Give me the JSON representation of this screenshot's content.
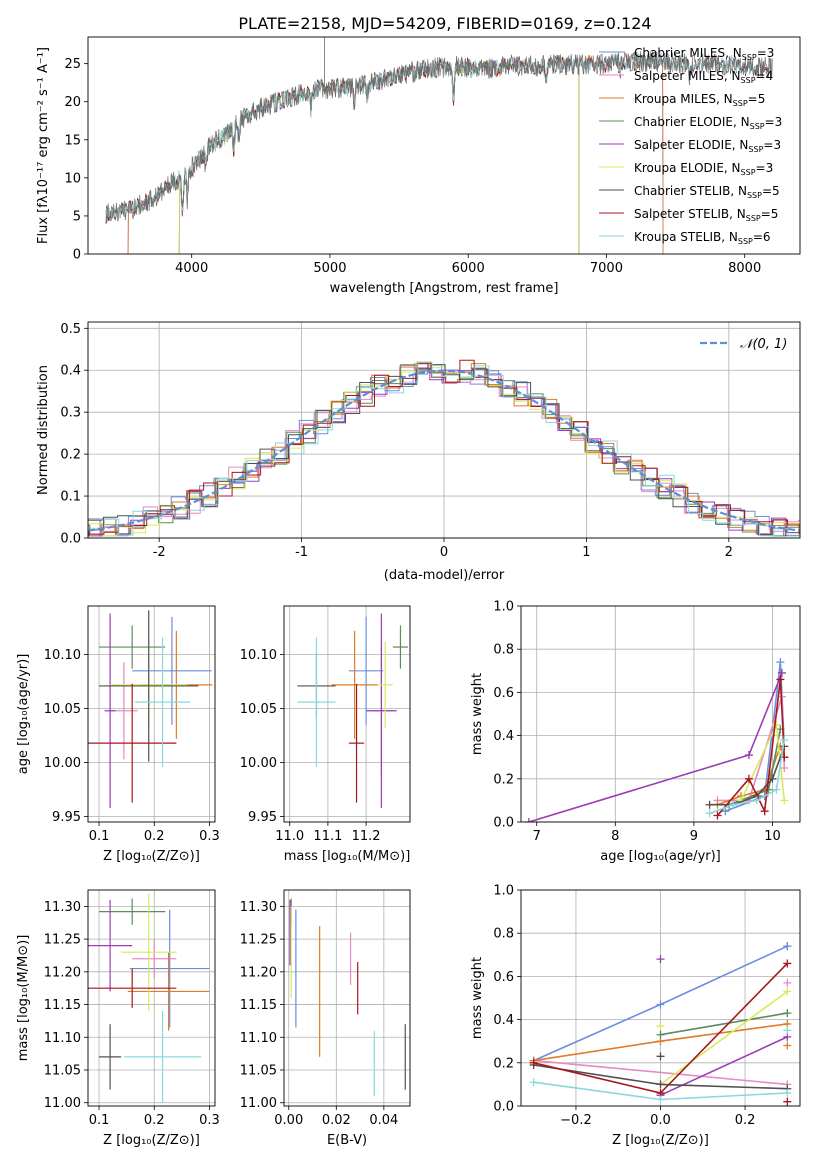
{
  "figure": {
    "title": "PLATE=2158, MJD=54209, FIBERID=0169, z=0.124"
  },
  "colors": {
    "Chabrier MILES": "#6a8fdc",
    "Salpeter MILES": "#e58ac4",
    "Kroupa MILES": "#e07b26",
    "Chabrier ELODIE": "#5c8b5c",
    "Salpeter ELODIE": "#9b3cb5",
    "Kroupa ELODIE": "#d4ec5a",
    "Chabrier STELIB": "#505050",
    "Salpeter STELIB": "#a8161c",
    "Kroupa STELIB": "#8ad8dc"
  },
  "chart_data": [
    {
      "id": "spectrum",
      "type": "line",
      "xlabel": "wavelength [Angstrom, rest frame]",
      "ylabel": "Flux [fλ10⁻¹⁷ erg cm⁻² s⁻¹ A⁻¹]",
      "xlim": [
        3250,
        8400
      ],
      "ylim": [
        0,
        28.5
      ],
      "xticks": [
        4000,
        5000,
        6000,
        7000,
        8000
      ],
      "yticks": [
        0,
        5,
        10,
        15,
        20,
        25
      ],
      "grid": false,
      "legend": "top-right",
      "legend_entries": [
        {
          "model": "Chabrier MILES",
          "text": "Chabrier MILES, N",
          "sub": "SSP",
          "val": "=3"
        },
        {
          "model": "Salpeter MILES",
          "text": "Salpeter MILES, N",
          "sub": "SSP",
          "val": "=4"
        },
        {
          "model": "Kroupa MILES",
          "text": "Kroupa MILES, N",
          "sub": "SSP",
          "val": "=5"
        },
        {
          "model": "Chabrier ELODIE",
          "text": "Chabrier ELODIE, N",
          "sub": "SSP",
          "val": "=3"
        },
        {
          "model": "Salpeter ELODIE",
          "text": "Salpeter ELODIE, N",
          "sub": "SSP",
          "val": "=3"
        },
        {
          "model": "Kroupa ELODIE",
          "text": "Kroupa ELODIE, N",
          "sub": "SSP",
          "val": "=3"
        },
        {
          "model": "Chabrier STELIB",
          "text": "Chabrier STELIB, N",
          "sub": "SSP",
          "val": "=5"
        },
        {
          "model": "Salpeter STELIB",
          "text": "Salpeter STELIB, N",
          "sub": "SSP",
          "val": "=5"
        },
        {
          "model": "Kroupa STELIB",
          "text": "Kroupa STELIB, N",
          "sub": "SSP",
          "val": "=6"
        }
      ],
      "continuum": [
        [
          3380,
          5.2
        ],
        [
          3450,
          5.5
        ],
        [
          3550,
          5.8
        ],
        [
          3650,
          6.6
        ],
        [
          3750,
          7.6
        ],
        [
          3850,
          9.2
        ],
        [
          3950,
          10.3
        ],
        [
          4050,
          12.4
        ],
        [
          4150,
          14.5
        ],
        [
          4250,
          15.6
        ],
        [
          4350,
          17.5
        ],
        [
          4500,
          19.2
        ],
        [
          4700,
          20.5
        ],
        [
          4900,
          21.7
        ],
        [
          5100,
          21.8
        ],
        [
          5300,
          22.6
        ],
        [
          5500,
          23.5
        ],
        [
          5700,
          24.3
        ],
        [
          5900,
          24.7
        ],
        [
          6100,
          24.2
        ],
        [
          6300,
          24.8
        ],
        [
          6500,
          24.7
        ],
        [
          6700,
          24.9
        ],
        [
          6900,
          24.8
        ],
        [
          7100,
          25.2
        ],
        [
          7300,
          25.3
        ],
        [
          7600,
          25.0
        ],
        [
          7900,
          24.8
        ],
        [
          8150,
          24.5
        ]
      ],
      "features": [
        [
          3934,
          -5
        ],
        [
          3969,
          -4
        ],
        [
          4102,
          -2.5
        ],
        [
          4304,
          -3
        ],
        [
          4341,
          -2
        ],
        [
          4861,
          -2.5
        ],
        [
          5175,
          -3
        ],
        [
          5270,
          -1.5
        ],
        [
          5894,
          -4
        ],
        [
          6563,
          -1.5
        ],
        [
          7100,
          -1
        ],
        [
          7600,
          -1.5
        ]
      ],
      "model_extents": {
        "Chabrier MILES": [
          3540,
          7410
        ],
        "Salpeter MILES": [
          3540,
          7410
        ],
        "Kroupa MILES": [
          3540,
          7410
        ],
        "Chabrier ELODIE": [
          3910,
          6800
        ],
        "Salpeter ELODIE": [
          3910,
          6800
        ],
        "Kroupa ELODIE": [
          3910,
          6800
        ],
        "Chabrier STELIB": [
          3380,
          8200
        ],
        "Salpeter STELIB": [
          3380,
          8200
        ],
        "Kroupa STELIB": [
          3380,
          8200
        ]
      }
    },
    {
      "id": "residuals",
      "type": "histogram",
      "xlabel": "(data-model)/error",
      "ylabel": "Normed distribution",
      "xlim": [
        -2.5,
        2.5
      ],
      "ylim": [
        0,
        0.515
      ],
      "xticks": [
        -2,
        -1,
        0,
        1,
        2
      ],
      "yticks": [
        0.0,
        0.1,
        0.2,
        0.3,
        0.4,
        0.5
      ],
      "ytick_labels": [
        "0.0",
        "0.1",
        "0.2",
        "0.3",
        "0.4",
        "0.5"
      ],
      "grid": true,
      "legend": "top-right",
      "legend_label": "𝒩(0, 1)",
      "normal_color": "#5b8fd6",
      "bin_width": 0.1
    },
    {
      "id": "age_vs_Z",
      "type": "errorbar",
      "xlabel": "Z [log₁₀(Z/Z⊙)]",
      "ylabel": "age  [log₁₀(age/yr)]",
      "xlim": [
        0.08,
        0.31
      ],
      "ylim": [
        9.945,
        10.145
      ],
      "xticks": [
        0.1,
        0.2,
        0.3
      ],
      "yticks": [
        9.95,
        10.0,
        10.05,
        10.1
      ],
      "ytick_labels": [
        "9.95",
        "10.00",
        "10.05",
        "10.10"
      ],
      "grid": true,
      "points": [
        {
          "model": "Chabrier MILES",
          "x": 0.232,
          "y": 10.085,
          "xerr": 0.072,
          "yerr": 0.05
        },
        {
          "model": "Salpeter MILES",
          "x": 0.145,
          "y": 10.048,
          "xerr": 0.025,
          "yerr": 0.045
        },
        {
          "model": "Kroupa MILES",
          "x": 0.24,
          "y": 10.072,
          "xerr": 0.065,
          "yerr": 0.05
        },
        {
          "model": "Chabrier ELODIE",
          "x": 0.16,
          "y": 10.107,
          "xerr": 0.06,
          "yerr": 0.02
        },
        {
          "model": "Salpeter ELODIE",
          "x": 0.12,
          "y": 10.048,
          "xerr": 0.01,
          "yerr": 0.09
        },
        {
          "model": "Kroupa ELODIE",
          "x": 0.19,
          "y": 10.072,
          "xerr": 0.07,
          "yerr": 0.04
        },
        {
          "model": "Chabrier STELIB",
          "x": 0.19,
          "y": 10.071,
          "xerr": 0.09,
          "yerr": 0.07
        },
        {
          "model": "Salpeter STELIB",
          "x": 0.16,
          "y": 10.018,
          "xerr": 0.08,
          "yerr": 0.055
        },
        {
          "model": "Kroupa STELIB",
          "x": 0.215,
          "y": 10.056,
          "xerr": 0.05,
          "yerr": 0.06
        }
      ]
    },
    {
      "id": "age_vs_mass",
      "type": "errorbar",
      "xlabel": "mass [log₁₀(M/M⊙)]",
      "ylabel": "",
      "xlim": [
        10.985,
        11.315
      ],
      "ylim": [
        9.945,
        10.145
      ],
      "xticks": [
        11.0,
        11.1,
        11.2
      ],
      "xtick_labels": [
        "11.0",
        "11.1",
        "11.2"
      ],
      "yticks": [
        9.95,
        10.0,
        10.05,
        10.1
      ],
      "ytick_labels": [
        "9.95",
        "10.00",
        "10.05",
        "10.10"
      ],
      "grid": true,
      "points": [
        {
          "model": "Chabrier MILES",
          "x": 11.2,
          "y": 10.085,
          "xerr": 0.045,
          "yerr": 0.05
        },
        {
          "model": "Salpeter MILES",
          "x": 11.24,
          "y": 10.048,
          "xerr": 0.03,
          "yerr": 0.06
        },
        {
          "model": "Kroupa MILES",
          "x": 11.17,
          "y": 10.072,
          "xerr": 0.06,
          "yerr": 0.05
        },
        {
          "model": "Chabrier ELODIE",
          "x": 11.29,
          "y": 10.107,
          "xerr": 0.02,
          "yerr": 0.02
        },
        {
          "model": "Salpeter ELODIE",
          "x": 11.24,
          "y": 10.048,
          "xerr": 0.04,
          "yerr": 0.09
        },
        {
          "model": "Kroupa ELODIE",
          "x": 11.25,
          "y": 10.072,
          "xerr": 0.02,
          "yerr": 0.04
        },
        {
          "model": "Chabrier STELIB",
          "x": 11.07,
          "y": 10.071,
          "xerr": 0.05,
          "yerr": 0.03
        },
        {
          "model": "Salpeter STELIB",
          "x": 11.175,
          "y": 10.018,
          "xerr": 0.02,
          "yerr": 0.055
        },
        {
          "model": "Kroupa STELIB",
          "x": 11.07,
          "y": 10.056,
          "xerr": 0.05,
          "yerr": 0.06
        }
      ]
    },
    {
      "id": "mass_weight_vs_age",
      "type": "line",
      "xlabel": "age  [log₁₀(age/yr)]",
      "ylabel": "mass weight",
      "xlim": [
        6.8,
        10.35
      ],
      "ylim": [
        0,
        1.0
      ],
      "xticks": [
        7,
        8,
        9,
        10
      ],
      "yticks": [
        0.0,
        0.2,
        0.4,
        0.6,
        0.8,
        1.0
      ],
      "ytick_labels": [
        "0.0",
        "0.2",
        "0.4",
        "0.6",
        "0.8",
        "1.0"
      ],
      "grid": true,
      "series": [
        {
          "model": "Chabrier MILES",
          "x": [
            9.4,
            9.9,
            10.1,
            10.15
          ],
          "y": [
            0.05,
            0.12,
            0.74,
            0.35
          ]
        },
        {
          "model": "Salpeter MILES",
          "x": [
            9.3,
            9.7,
            10.12,
            10.15
          ],
          "y": [
            0.1,
            0.1,
            0.58,
            0.25
          ]
        },
        {
          "model": "Kroupa MILES",
          "x": [
            9.3,
            9.6,
            9.9,
            10.1,
            10.15
          ],
          "y": [
            0.08,
            0.12,
            0.15,
            0.35,
            0.3
          ]
        },
        {
          "model": "Chabrier ELODIE",
          "x": [
            9.45,
            9.95,
            10.1
          ],
          "y": [
            0.08,
            0.15,
            0.43
          ]
        },
        {
          "model": "Salpeter ELODIE",
          "x": [
            6.9,
            9.7,
            10.12
          ],
          "y": [
            0.0,
            0.31,
            0.69
          ]
        },
        {
          "model": "Kroupa ELODIE",
          "x": [
            9.6,
            10.05,
            10.15
          ],
          "y": [
            0.1,
            0.45,
            0.1
          ]
        },
        {
          "model": "Chabrier STELIB",
          "x": [
            9.2,
            9.5,
            9.8,
            10.0,
            10.15
          ],
          "y": [
            0.08,
            0.08,
            0.12,
            0.2,
            0.35
          ]
        },
        {
          "model": "Salpeter STELIB",
          "x": [
            9.3,
            9.7,
            9.9,
            10.1,
            10.15
          ],
          "y": [
            0.03,
            0.2,
            0.05,
            0.66,
            0.3
          ]
        },
        {
          "model": "Kroupa STELIB",
          "x": [
            9.2,
            9.5,
            9.8,
            10.05,
            10.15
          ],
          "y": [
            0.04,
            0.08,
            0.1,
            0.15,
            0.38
          ]
        }
      ]
    },
    {
      "id": "mass_vs_Z",
      "type": "errorbar",
      "xlabel": "Z [log₁₀(Z/Z⊙)]",
      "ylabel": "mass [log₁₀(M/M⊙)]",
      "xlim": [
        0.08,
        0.31
      ],
      "ylim": [
        10.995,
        11.325
      ],
      "xticks": [
        0.1,
        0.2,
        0.3
      ],
      "yticks": [
        11.0,
        11.05,
        11.1,
        11.15,
        11.2,
        11.25,
        11.3
      ],
      "ytick_labels": [
        "11.00",
        "11.05",
        "11.10",
        "11.15",
        "11.20",
        "11.25",
        "11.30"
      ],
      "grid": true,
      "points": [
        {
          "model": "Chabrier MILES",
          "x": 0.228,
          "y": 11.205,
          "xerr": 0.072,
          "yerr": 0.09
        },
        {
          "model": "Salpeter MILES",
          "x": 0.2,
          "y": 11.22,
          "xerr": 0.04,
          "yerr": 0.03
        },
        {
          "model": "Kroupa MILES",
          "x": 0.226,
          "y": 11.17,
          "xerr": 0.074,
          "yerr": 0.06
        },
        {
          "model": "Chabrier ELODIE",
          "x": 0.16,
          "y": 11.292,
          "xerr": 0.06,
          "yerr": 0.02
        },
        {
          "model": "Salpeter ELODIE",
          "x": 0.12,
          "y": 11.24,
          "xerr": 0.04,
          "yerr": 0.07
        },
        {
          "model": "Kroupa ELODIE",
          "x": 0.19,
          "y": 11.23,
          "xerr": 0.05,
          "yerr": 0.09
        },
        {
          "model": "Chabrier STELIB",
          "x": 0.12,
          "y": 11.07,
          "xerr": 0.02,
          "yerr": 0.05
        },
        {
          "model": "Salpeter STELIB",
          "x": 0.16,
          "y": 11.175,
          "xerr": 0.08,
          "yerr": 0.03
        },
        {
          "model": "Kroupa STELIB",
          "x": 0.215,
          "y": 11.07,
          "xerr": 0.07,
          "yerr": 0.07
        }
      ]
    },
    {
      "id": "mass_vs_ebv",
      "type": "errorbar",
      "xlabel": "E(B-V)",
      "ylabel": "",
      "xlim": [
        -0.002,
        0.051
      ],
      "ylim": [
        10.995,
        11.325
      ],
      "xticks": [
        0.0,
        0.02,
        0.04
      ],
      "xtick_labels": [
        "0.00",
        "0.02",
        "0.04"
      ],
      "yticks": [
        11.0,
        11.05,
        11.1,
        11.15,
        11.2,
        11.25,
        11.3
      ],
      "ytick_labels": [
        "11.00",
        "11.05",
        "11.10",
        "11.15",
        "11.20",
        "11.25",
        "11.30"
      ],
      "grid": true,
      "points": [
        {
          "model": "Chabrier MILES",
          "x": 0.003,
          "y": 11.205,
          "xerr": 0.0,
          "yerr": 0.09
        },
        {
          "model": "Salpeter MILES",
          "x": 0.026,
          "y": 11.22,
          "xerr": 0.0,
          "yerr": 0.04
        },
        {
          "model": "Kroupa MILES",
          "x": 0.013,
          "y": 11.17,
          "xerr": 0.0,
          "yerr": 0.1
        },
        {
          "model": "Chabrier ELODIE",
          "x": 0.001,
          "y": 11.292,
          "xerr": 0.0,
          "yerr": 0.02
        },
        {
          "model": "Salpeter ELODIE",
          "x": 0.0005,
          "y": 11.26,
          "xerr": 0.0,
          "yerr": 0.05
        },
        {
          "model": "Kroupa ELODIE",
          "x": 0.001,
          "y": 11.23,
          "xerr": 0.0,
          "yerr": 0.07
        },
        {
          "model": "Chabrier STELIB",
          "x": 0.049,
          "y": 11.07,
          "xerr": 0.0,
          "yerr": 0.05
        },
        {
          "model": "Salpeter STELIB",
          "x": 0.029,
          "y": 11.175,
          "xerr": 0.0,
          "yerr": 0.04
        },
        {
          "model": "Kroupa STELIB",
          "x": 0.036,
          "y": 11.06,
          "xerr": 0.0,
          "yerr": 0.05
        }
      ]
    },
    {
      "id": "mass_weight_vs_Z",
      "type": "line",
      "xlabel": "Z [log₁₀(Z/Z⊙)]",
      "ylabel": "mass weight",
      "xlim": [
        -0.33,
        0.33
      ],
      "ylim": [
        0,
        1.0
      ],
      "xticks": [
        -0.2,
        0.0,
        0.2
      ],
      "xtick_labels": [
        "−0.2",
        "0.0",
        "0.2"
      ],
      "yticks": [
        0.0,
        0.2,
        0.4,
        0.6,
        0.8,
        1.0
      ],
      "ytick_labels": [
        "0.0",
        "0.2",
        "0.4",
        "0.6",
        "0.8",
        "1.0"
      ],
      "grid": true,
      "series": [
        {
          "model": "Chabrier MILES",
          "x": [
            -0.3,
            0.0,
            0.3
          ],
          "y": [
            0.21,
            0.47,
            0.74
          ]
        },
        {
          "model": "Salpeter MILES",
          "x": [
            -0.3,
            0.3
          ],
          "y": [
            0.21,
            0.1
          ]
        },
        {
          "model": "Kroupa MILES",
          "x": [
            -0.3,
            0.0,
            0.3
          ],
          "y": [
            0.21,
            0.3,
            0.38
          ]
        },
        {
          "model": "Chabrier ELODIE",
          "x": [
            0.0,
            0.3
          ],
          "y": [
            0.33,
            0.43
          ]
        },
        {
          "model": "Salpeter ELODIE",
          "x": [
            0.0,
            0.3
          ],
          "y": [
            0.05,
            0.32
          ]
        },
        {
          "model": "Kroupa ELODIE",
          "x": [
            0.0,
            0.3
          ],
          "y": [
            0.1,
            0.53
          ]
        },
        {
          "model": "Chabrier STELIB",
          "x": [
            -0.3,
            0.0,
            0.3
          ],
          "y": [
            0.19,
            0.1,
            0.08
          ]
        },
        {
          "model": "Salpeter STELIB",
          "x": [
            -0.3,
            0.0,
            0.3
          ],
          "y": [
            0.2,
            0.06,
            0.66
          ]
        },
        {
          "model": "Kroupa STELIB",
          "x": [
            -0.3,
            0.0,
            0.3
          ],
          "y": [
            0.11,
            0.03,
            0.06
          ]
        }
      ],
      "markers": [
        {
          "model": "Chabrier MILES",
          "x": 0.3,
          "y": 0.74
        },
        {
          "model": "Salpeter ELODIE",
          "x": 0.0,
          "y": 0.68
        },
        {
          "model": "Kroupa ELODIE",
          "x": 0.0,
          "y": 0.37
        },
        {
          "model": "Kroupa STELIB",
          "x": 0.3,
          "y": 0.35
        },
        {
          "model": "Chabrier STELIB",
          "x": 0.0,
          "y": 0.23
        },
        {
          "model": "Salpeter STELIB",
          "x": 0.3,
          "y": 0.02
        },
        {
          "model": "Kroupa MILES",
          "x": 0.3,
          "y": 0.28
        },
        {
          "model": "Salpeter MILES",
          "x": 0.3,
          "y": 0.57
        }
      ]
    }
  ]
}
